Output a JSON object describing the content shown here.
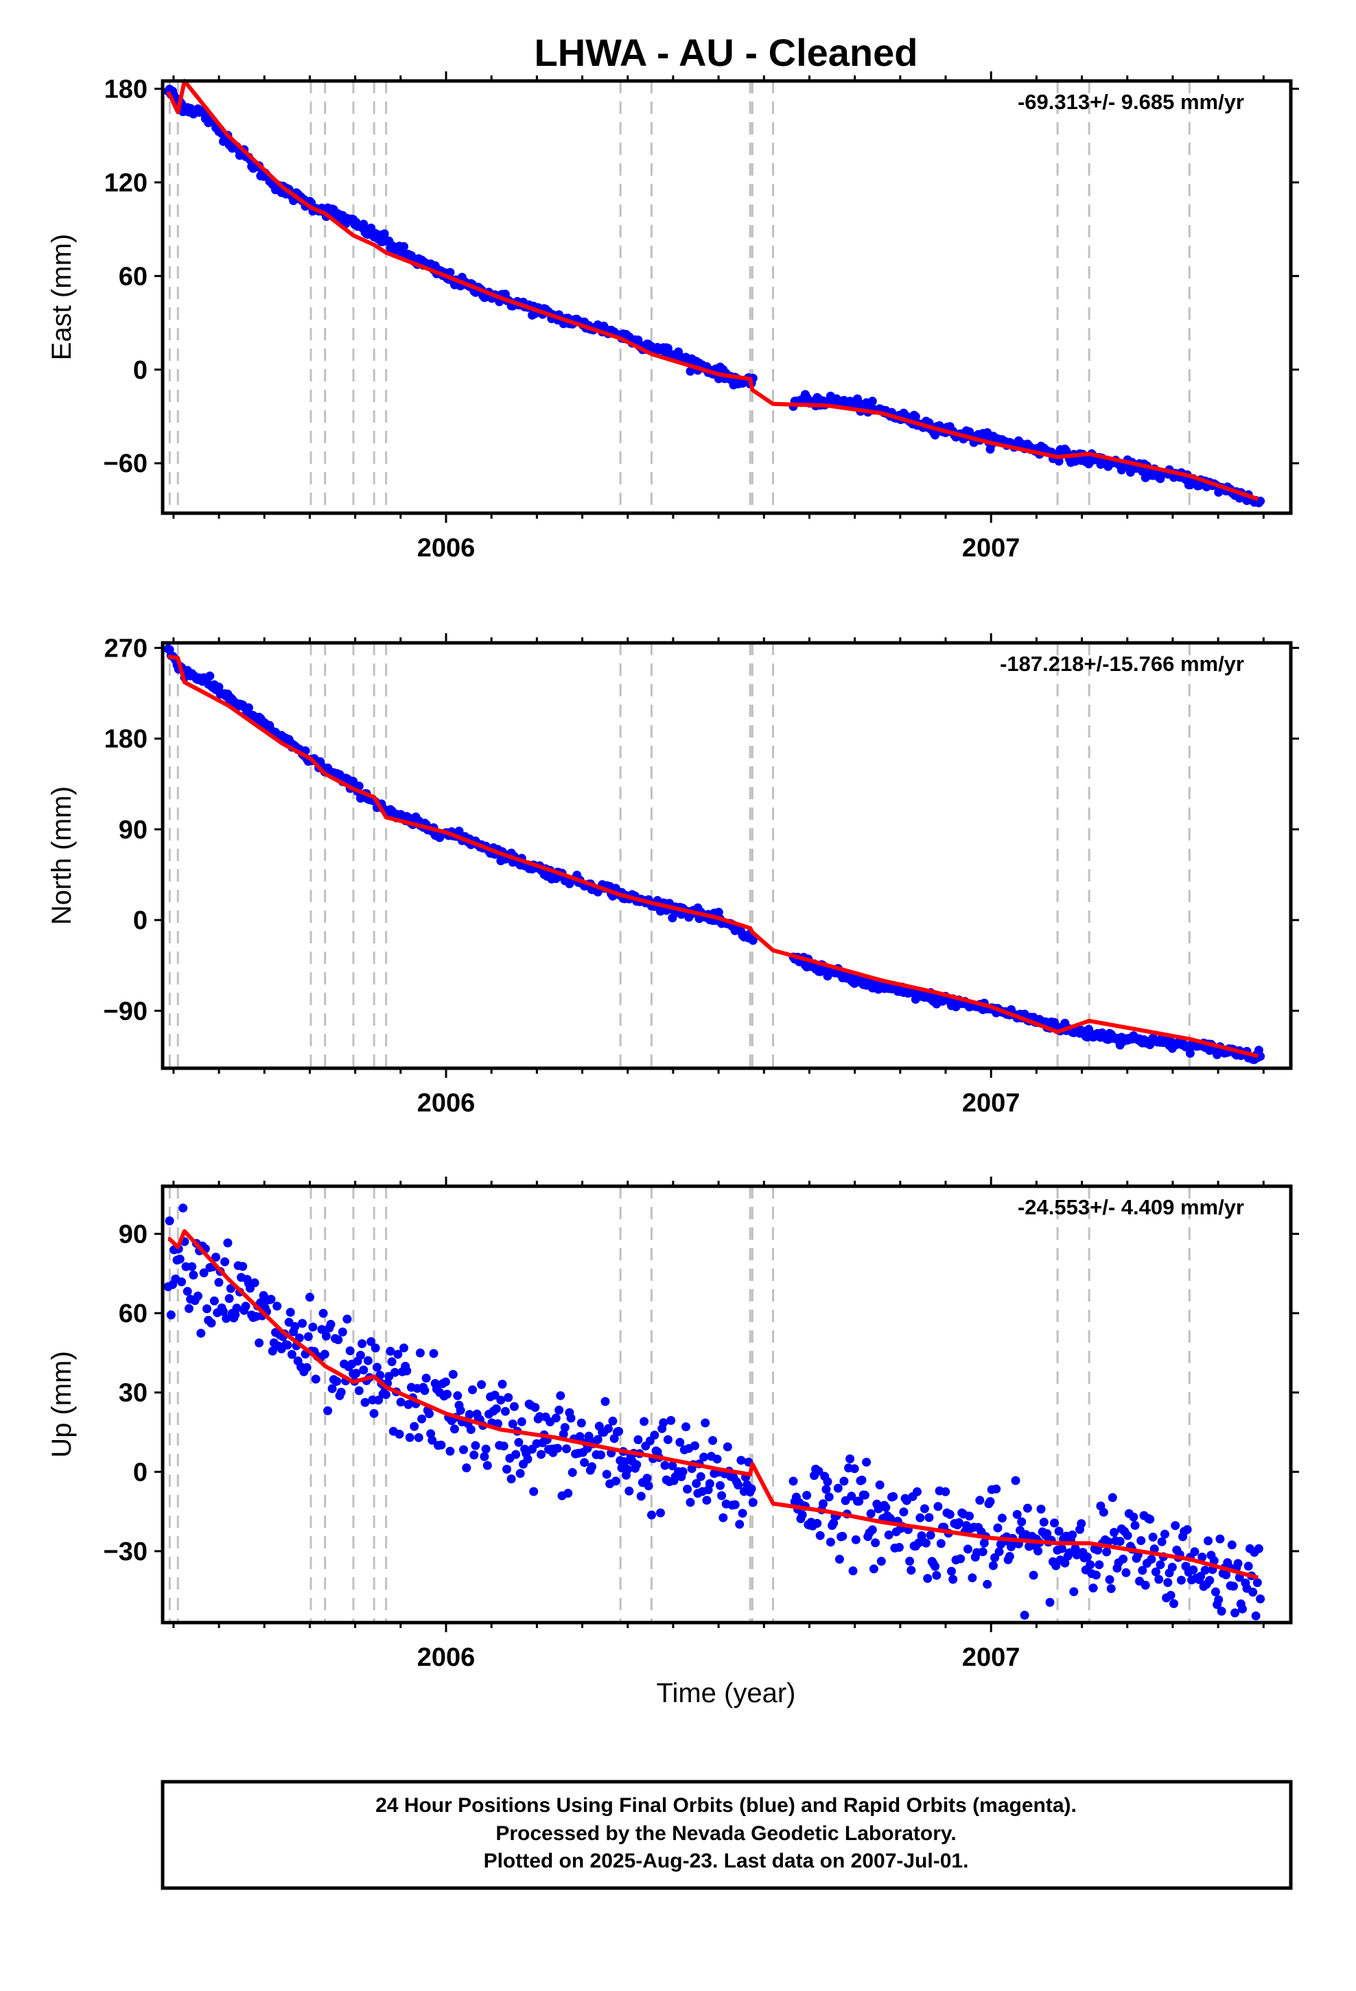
{
  "chart_data": {
    "title": "LHWA  - AU - Cleaned",
    "type": "scatter",
    "x_axis": {
      "label": "Time (year)",
      "range": [
        2005.48,
        2007.55
      ],
      "tick_labels": [
        "2006",
        "2007"
      ],
      "tick_values": [
        2006.0,
        2007.0
      ]
    },
    "offset_lines": [
      2005.493,
      2005.508,
      2005.752,
      2005.778,
      2005.83,
      2005.868,
      2005.89,
      2006.32,
      2006.377,
      2006.558,
      2006.562,
      2006.6,
      2007.122,
      2007.18,
      2007.364
    ],
    "colors": {
      "points": "#0000ff",
      "model": "#ff0000",
      "offsets": "#c0c0c0",
      "frame": "#000000"
    },
    "panels": [
      {
        "name": "East",
        "ylabel": "East (mm)",
        "ylim": [
          -92,
          185
        ],
        "yticks": [
          -60,
          0,
          60,
          120,
          180
        ],
        "rate_text": "-69.313+/- 9.685 mm/yr",
        "noise": 1.8,
        "series": [
          {
            "name": "Final Orbits",
            "color": "#0000ff",
            "x": [
              2005.49,
              2005.52,
              2005.55,
              2005.6,
              2005.65,
              2005.7,
              2005.75,
              2005.8,
              2005.85,
              2005.9,
              2005.95,
              2006.0,
              2006.05,
              2006.1,
              2006.15,
              2006.2,
              2006.25,
              2006.3,
              2006.35,
              2006.4,
              2006.45,
              2006.5,
              2006.56,
              2006.6,
              2006.64,
              2006.7,
              2006.75,
              2006.8,
              2006.85,
              2006.9,
              2006.95,
              2007.0,
              2007.05,
              2007.1,
              2007.15,
              2007.2,
              2007.25,
              2007.3,
              2007.35,
              2007.4,
              2007.45,
              2007.49
            ],
            "y": [
              179,
              168,
              165,
              148,
              130,
              115,
              106,
              99,
              90,
              80,
              69,
              60,
              52,
              46,
              40,
              34,
              29,
              25,
              18,
              12,
              5,
              -2,
              -10,
              null,
              -20,
              -20,
              -22,
              -27,
              -32,
              -37,
              -42,
              -45,
              -48,
              -52,
              -56,
              -58,
              -62,
              -66,
              -69,
              -74,
              -79,
              -85
            ]
          },
          {
            "name": "Model",
            "color": "#ff0000",
            "x": [
              2005.49,
              2005.493,
              2005.508,
              2005.52,
              2005.6,
              2005.7,
              2005.752,
              2005.778,
              2005.83,
              2005.868,
              2005.89,
              2006.0,
              2006.1,
              2006.2,
              2006.32,
              2006.377,
              2006.5,
              2006.558,
              2006.562,
              2006.6,
              2006.7,
              2006.8,
              2006.9,
              2007.0,
              2007.122,
              2007.18,
              2007.364,
              2007.49
            ],
            "y": [
              178,
              176,
              165,
              185,
              150,
              117,
              104,
              100,
              86,
              80,
              75,
              60,
              46,
              34,
              20,
              10,
              -3,
              -6,
              -13,
              -22,
              -23,
              -28,
              -38,
              -47,
              -56,
              -54,
              -68,
              -83
            ]
          }
        ]
      },
      {
        "name": "North",
        "ylabel": "North (mm)",
        "ylim": [
          -147,
          275
        ],
        "yticks": [
          -90,
          0,
          90,
          180,
          270
        ],
        "rate_text": "-187.218+/-15.766 mm/yr",
        "noise": 2.5,
        "series": [
          {
            "name": "Final Orbits",
            "color": "#0000ff",
            "x": [
              2005.49,
              2005.52,
              2005.55,
              2005.6,
              2005.65,
              2005.7,
              2005.75,
              2005.8,
              2005.85,
              2005.9,
              2005.95,
              2006.0,
              2006.05,
              2006.1,
              2006.15,
              2006.2,
              2006.25,
              2006.3,
              2006.35,
              2006.4,
              2006.45,
              2006.5,
              2006.56,
              2006.6,
              2006.64,
              2006.7,
              2006.75,
              2006.8,
              2006.85,
              2006.9,
              2006.95,
              2007.0,
              2007.05,
              2007.1,
              2007.15,
              2007.2,
              2007.25,
              2007.3,
              2007.35,
              2007.4,
              2007.45,
              2007.49
            ],
            "y": [
              268,
              246,
              240,
              222,
              200,
              180,
              160,
              143,
              125,
              105,
              95,
              86,
              78,
              66,
              55,
              45,
              37,
              30,
              20,
              14,
              8,
              0,
              -18,
              null,
              -38,
              -50,
              -60,
              -67,
              -72,
              -78,
              -83,
              -88,
              -95,
              -102,
              -110,
              -114,
              -118,
              -120,
              -124,
              -127,
              -131,
              -135
            ]
          },
          {
            "name": "Model",
            "color": "#ff0000",
            "x": [
              2005.49,
              2005.493,
              2005.508,
              2005.52,
              2005.6,
              2005.7,
              2005.752,
              2005.778,
              2005.83,
              2005.868,
              2005.89,
              2006.0,
              2006.1,
              2006.2,
              2006.32,
              2006.377,
              2006.5,
              2006.558,
              2006.562,
              2006.6,
              2006.7,
              2006.8,
              2006.9,
              2007.0,
              2007.122,
              2007.18,
              2007.364,
              2007.49
            ],
            "y": [
              262,
              261,
              260,
              236,
              213,
              175,
              160,
              145,
              130,
              122,
              102,
              87,
              66,
              48,
              25,
              17,
              2,
              -8,
              -12,
              -30,
              -45,
              -60,
              -72,
              -86,
              -111,
              -100,
              -118,
              -135
            ]
          }
        ]
      },
      {
        "name": "Up",
        "ylabel": "Up (mm)",
        "ylim": [
          -57,
          108
        ],
        "yticks": [
          -30,
          0,
          30,
          60,
          90
        ],
        "rate_text": "-24.553+/- 4.409 mm/yr",
        "noise": 9,
        "series": [
          {
            "name": "Final Orbits",
            "color": "#0000ff",
            "x": [
              2005.49,
              2005.52,
              2005.55,
              2005.6,
              2005.65,
              2005.7,
              2005.75,
              2005.8,
              2005.85,
              2005.9,
              2005.95,
              2006.0,
              2006.05,
              2006.1,
              2006.15,
              2006.2,
              2006.25,
              2006.3,
              2006.35,
              2006.4,
              2006.45,
              2006.5,
              2006.56,
              2006.6,
              2006.64,
              2006.7,
              2006.75,
              2006.8,
              2006.85,
              2006.9,
              2006.95,
              2007.0,
              2007.05,
              2007.1,
              2007.15,
              2007.2,
              2007.25,
              2007.3,
              2007.35,
              2007.4,
              2007.45,
              2007.49
            ],
            "y": [
              82,
              80,
              76,
              70,
              60,
              52,
              45,
              38,
              34,
              32,
              28,
              22,
              18,
              16,
              13,
              11,
              9,
              7,
              5,
              3,
              0,
              -4,
              -6,
              null,
              -10,
              -12,
              -14,
              -18,
              -20,
              -22,
              -24,
              -26,
              -27,
              -28,
              -27,
              -29,
              -31,
              -33,
              -35,
              -37,
              -39,
              -41
            ]
          },
          {
            "name": "Model",
            "color": "#ff0000",
            "x": [
              2005.49,
              2005.493,
              2005.508,
              2005.52,
              2005.6,
              2005.7,
              2005.752,
              2005.778,
              2005.83,
              2005.868,
              2005.89,
              2006.0,
              2006.1,
              2006.2,
              2006.32,
              2006.377,
              2006.5,
              2006.558,
              2006.562,
              2006.6,
              2006.7,
              2006.8,
              2006.9,
              2007.0,
              2007.122,
              2007.18,
              2007.364,
              2007.49
            ],
            "y": [
              88,
              88,
              85,
              91,
              73,
              53,
              45,
              40,
              34,
              36,
              32,
              22,
              16,
              13,
              8,
              6,
              1,
              -1,
              3,
              -12,
              -15,
              -19,
              -22,
              -25,
              -27,
              -27,
              -33,
              -40
            ]
          }
        ]
      }
    ],
    "footer": {
      "lines": [
        "24 Hour Positions Using Final Orbits (blue) and Rapid Orbits (magenta).",
        "Processed by the Nevada Geodetic Laboratory.",
        "Plotted on 2025-Aug-23. Last data on 2007-Jul-01."
      ]
    }
  }
}
